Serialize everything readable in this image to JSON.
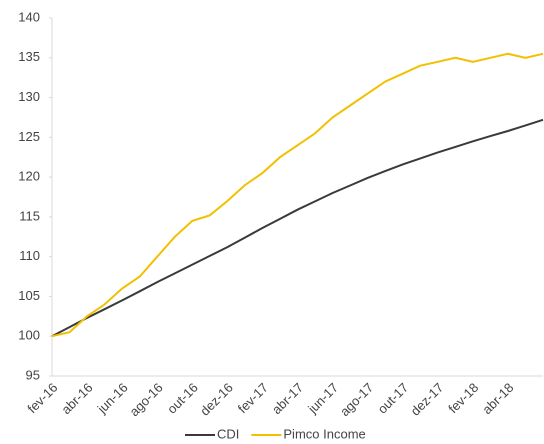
{
  "chart_data": {
    "type": "line",
    "categories": [
      "fev-16",
      null,
      "abr-16",
      null,
      "jun-16",
      null,
      "ago-16",
      null,
      "out-16",
      null,
      "dez-16",
      null,
      "fev-17",
      null,
      "abr-17",
      null,
      "jun-17",
      null,
      "ago-17",
      null,
      "out-17",
      null,
      "dez-17",
      null,
      "fev-18",
      null,
      "abr-18",
      null,
      null
    ],
    "series": [
      {
        "name": "CDI",
        "color": "#3a3a3a",
        "values": [
          100,
          101.15,
          102.3,
          103.4,
          104.5,
          105.65,
          106.8,
          107.9,
          109,
          110.1,
          111.2,
          112.4,
          113.6,
          114.75,
          115.9,
          116.95,
          118,
          118.95,
          119.9,
          120.75,
          121.6,
          122.35,
          123.1,
          123.8,
          124.5,
          125.15,
          125.8,
          126.5,
          127.2
        ]
      },
      {
        "name": "Pimco Income",
        "color": "#f2c000",
        "values": [
          100,
          100.5,
          102.5,
          104,
          106,
          107.5,
          110,
          112.5,
          114.5,
          115.2,
          117,
          119,
          120.5,
          122.5,
          124,
          125.5,
          127.5,
          129,
          130.5,
          132,
          133,
          134,
          134.5,
          135,
          134.5,
          135,
          135.5,
          135,
          135.5
        ]
      }
    ],
    "ylim": [
      95,
      140
    ],
    "yticks": [
      95,
      100,
      105,
      110,
      115,
      120,
      125,
      130,
      135,
      140
    ],
    "legend": "bottom"
  }
}
